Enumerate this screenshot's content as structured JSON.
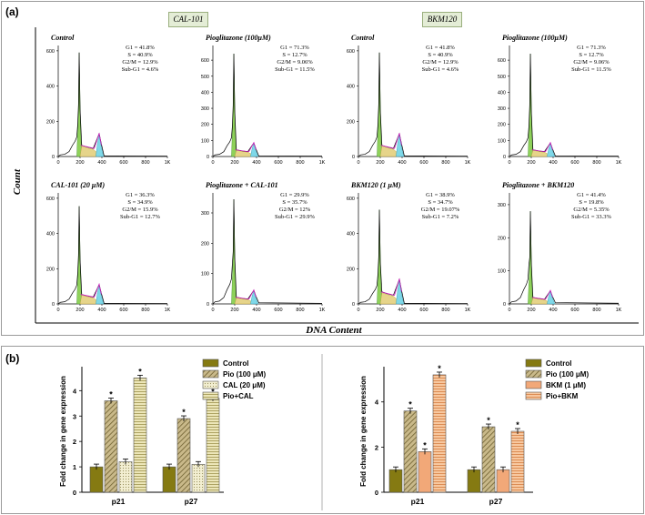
{
  "panel_a": {
    "label": "(a)",
    "groups": [
      "CAL-101",
      "BKM120"
    ],
    "y_axis_title": "Count",
    "x_axis_title": "DNA Content"
  },
  "panel_b": {
    "label": "(b)"
  },
  "chart_data": [
    {
      "type": "histogram",
      "group": "CAL-101",
      "title": "Control",
      "y_ticks": [
        0,
        200,
        400,
        600
      ],
      "ylim": [
        0,
        620
      ],
      "x_ticks": [
        "0",
        "200",
        "400",
        "600",
        "800",
        "1K"
      ],
      "stats": [
        "G1 = 41.8%",
        "S = 40.9%",
        "G2/M = 12.9%",
        "Sub-G1 = 4.6%"
      ],
      "g1_peak": 590,
      "g2_peak": 130
    },
    {
      "type": "histogram",
      "group": "CAL-101",
      "title": "Pioglitazone (100μM)",
      "y_ticks": [
        0,
        100,
        200,
        300,
        400,
        500,
        600
      ],
      "ylim": [
        0,
        680
      ],
      "x_ticks": [
        "0",
        "200",
        "400",
        "600",
        "800",
        "1K"
      ],
      "stats": [
        "G1 = 71.3%",
        "S = 12.7%",
        "G2/M = 9.06%",
        "Sub-G1 = 11.5%"
      ],
      "g1_peak": 640,
      "g2_peak": 85
    },
    {
      "type": "histogram",
      "group": "BKM120",
      "title": "Control",
      "y_ticks": [
        0,
        200,
        400,
        600
      ],
      "ylim": [
        0,
        620
      ],
      "x_ticks": [
        "0",
        "200",
        "400",
        "600",
        "800",
        "1K"
      ],
      "stats": [
        "G1 = 41.8%",
        "S = 40.9%",
        "G2/M = 12.9%",
        "Sub-G1 = 4.6%"
      ],
      "g1_peak": 590,
      "g2_peak": 130
    },
    {
      "type": "histogram",
      "group": "BKM120",
      "title": "Pioglitazone (100μM)",
      "y_ticks": [
        0,
        100,
        200,
        300,
        400,
        500,
        600
      ],
      "ylim": [
        0,
        680
      ],
      "x_ticks": [
        "0",
        "200",
        "400",
        "600",
        "800",
        "1K"
      ],
      "stats": [
        "G1 = 71.3%",
        "S = 12.7%",
        "G2/M = 9.06%",
        "Sub-G1 = 11.5%"
      ],
      "g1_peak": 640,
      "g2_peak": 85
    },
    {
      "type": "histogram",
      "group": "CAL-101",
      "title": "CAL-101 (20 μM)",
      "y_ticks": [
        0,
        200,
        400,
        600
      ],
      "ylim": [
        0,
        620
      ],
      "x_ticks": [
        "0",
        "200",
        "400",
        "600",
        "800",
        "1K"
      ],
      "stats": [
        "G1 = 36.3%",
        "S = 34.9%",
        "G2/M = 15.9%",
        "Sub-G1 = 12.7%"
      ],
      "g1_peak": 555,
      "g2_peak": 110
    },
    {
      "type": "histogram",
      "group": "CAL-101",
      "title": "Pioglitazone + CAL-101",
      "y_ticks": [
        0,
        100,
        200,
        300
      ],
      "ylim": [
        0,
        360
      ],
      "x_ticks": [
        "0",
        "200",
        "400",
        "600",
        "800",
        "1K"
      ],
      "stats": [
        "G1 = 29.9%",
        "S = 35.7%",
        "G2/M = 12%",
        "Sub-G1 = 29.9%"
      ],
      "g1_peak": 345,
      "g2_peak": 45
    },
    {
      "type": "histogram",
      "group": "BKM120",
      "title": "BKM120 (1 μM)",
      "y_ticks": [
        0,
        200,
        400,
        600
      ],
      "ylim": [
        0,
        620
      ],
      "x_ticks": [
        "0",
        "200",
        "400",
        "600",
        "800",
        "1K"
      ],
      "stats": [
        "G1 = 38.9%",
        "S = 34.7%",
        "G2/M = 19.07%",
        "Sub-G1 = 7.2%"
      ],
      "g1_peak": 535,
      "g2_peak": 140
    },
    {
      "type": "histogram",
      "group": "BKM120",
      "title": "Pioglitazone + BKM120",
      "y_ticks": [
        0,
        100,
        200,
        300
      ],
      "ylim": [
        0,
        330
      ],
      "x_ticks": [
        "0",
        "200",
        "400",
        "600",
        "800",
        "1K"
      ],
      "stats": [
        "G1 = 41.4%",
        "S = 19.8%",
        "G2/M = 5.35%",
        "Sub-G1 = 33.3%"
      ],
      "g1_peak": 280,
      "g2_peak": 40
    },
    {
      "type": "bar",
      "title": "",
      "ylabel": "Fold change in gene expression",
      "categories": [
        "p21",
        "p27"
      ],
      "ylim": [
        0,
        4.8
      ],
      "y_ticks": [
        0,
        1,
        2,
        3,
        4
      ],
      "series": [
        {
          "name": "Control",
          "values": [
            1.0,
            1.0
          ],
          "significant": [
            false,
            false
          ],
          "color": "#857a12",
          "pattern": "solid"
        },
        {
          "name": "Pio (100 μM)",
          "values": [
            3.6,
            2.9
          ],
          "significant": [
            true,
            true
          ],
          "color": "#a0905a",
          "pattern": "hatch"
        },
        {
          "name": "CAL (20 μM)",
          "values": [
            1.2,
            1.1
          ],
          "significant": [
            false,
            false
          ],
          "color": "#e8e2b6",
          "pattern": "dots"
        },
        {
          "name": "Pio+CAL",
          "values": [
            4.5,
            3.7
          ],
          "significant": [
            true,
            true
          ],
          "color": "#dcd6a0",
          "pattern": "hlines"
        }
      ],
      "significance_marker": "*"
    },
    {
      "type": "bar",
      "title": "",
      "ylabel": "Fold change in gene expression",
      "categories": [
        "p21",
        "p27"
      ],
      "ylim": [
        0,
        5.4
      ],
      "y_ticks": [
        0,
        2,
        4
      ],
      "series": [
        {
          "name": "Control",
          "values": [
            1.0,
            1.0
          ],
          "significant": [
            false,
            false
          ],
          "color": "#857a12",
          "pattern": "solid"
        },
        {
          "name": "Pio (100 μM)",
          "values": [
            3.6,
            2.9
          ],
          "significant": [
            true,
            true
          ],
          "color": "#a0905a",
          "pattern": "hatch"
        },
        {
          "name": "BKM (1 μM)",
          "values": [
            1.8,
            1.0
          ],
          "significant": [
            true,
            false
          ],
          "color": "#f2a878",
          "pattern": "solid"
        },
        {
          "name": "Pio+BKM",
          "values": [
            5.2,
            2.7
          ],
          "significant": [
            true,
            true
          ],
          "color": "#f4b482",
          "pattern": "hlines"
        }
      ],
      "significance_marker": "*"
    }
  ]
}
